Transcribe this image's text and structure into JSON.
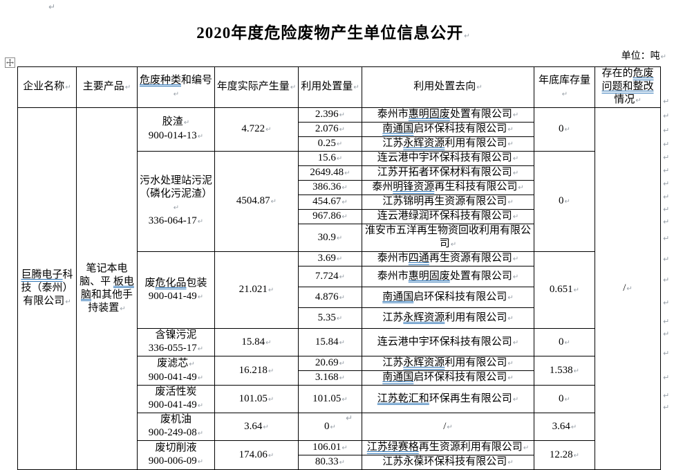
{
  "document": {
    "paragraph_mark": "↵",
    "title": "2020年度危险废物产生单位信息公开",
    "unit_label": "单位：吨"
  },
  "colors": {
    "grammar_underline": "#2e75b6",
    "formatting_mark": "#98a0a8",
    "table_border": "#000000",
    "text": "#000000",
    "background": "#ffffff"
  },
  "table": {
    "headers": [
      {
        "t": "企业名称"
      },
      {
        "t": "主要产品"
      },
      {
        "t": "危废种类和编号",
        "u": "危废种类"
      },
      {
        "t": "年度实际产生量"
      },
      {
        "t": "利用处置量"
      },
      {
        "t": "利用处置去向"
      },
      {
        "t": "年底库存量"
      },
      {
        "t": "存在的危废问题和整改情况",
        "u": "危废问题和整改"
      }
    ],
    "company": {
      "t": "巨腾电子科技（泰州）有限公司",
      "u": "巨腾电子"
    },
    "main_product": {
      "t": "笔记本电脑、平 板电脑和其他手持装置",
      "u": "板电脑"
    },
    "issues": "/",
    "groups": [
      {
        "waste_lines": [
          {
            "t": "胶渣",
            "p": true
          },
          {
            "t": "900-014-13",
            "p": true
          }
        ],
        "annual": "4.722",
        "stock": "0",
        "rows": [
          {
            "amount": "2.396",
            "dest": {
              "t": "泰州市惠明固废处置有限公司",
              "u": "惠明固废"
            }
          },
          {
            "amount": "2.076",
            "dest": {
              "t": "南通国启环保科技有限公司",
              "u": "南通国"
            }
          },
          {
            "amount": "0.25",
            "dest": {
              "t": "江苏永辉资源利用有限公司",
              "u": "永辉资源"
            }
          }
        ]
      },
      {
        "waste_lines": [
          {
            "t": "污水处理站污泥",
            "p": false
          },
          {
            "t": "（磷化污泥渣）",
            "p": true
          },
          {
            "t": "336-064-17",
            "p": true
          }
        ],
        "annual": "4504.87",
        "stock": "0",
        "rows": [
          {
            "amount": "15.6",
            "dest": {
              "t": "连云港中宇环保科技有限公司"
            }
          },
          {
            "amount": "2649.48",
            "dest": {
              "t": "江苏开拓者环保材料有限公司"
            }
          },
          {
            "amount": "386.36",
            "dest": {
              "t": "泰州明锋资源再生科技有限公司",
              "u": "明锋资源"
            }
          },
          {
            "amount": "454.67",
            "dest": {
              "t": "江苏锦明再生资源有限公司"
            }
          },
          {
            "amount": "967.86",
            "dest": {
              "t": "连云港绿润环保科技有限公司"
            }
          },
          {
            "amount": "30.9",
            "dest": {
              "t": "淮安市五洋再生物资回收利用有限公司"
            }
          }
        ]
      },
      {
        "waste_lines": [
          {
            "t": "废危化品包装",
            "u": "危化品",
            "p": false
          },
          {
            "t": "900-041-49",
            "p": true
          }
        ],
        "annual": "21.021",
        "stock": "0.651",
        "rows": [
          {
            "amount": "3.69",
            "dest": {
              "t": "泰州市四通再生资源有限公司",
              "u": "四通"
            }
          },
          {
            "amount": "7.724",
            "dest": {
              "t": "泰州市惠明固废处置有限公司",
              "u": "惠明固废"
            }
          },
          {
            "amount": "4.876",
            "dest": {
              "t": "南通国启环保科技有限公司",
              "u": "南通国"
            }
          },
          {
            "amount": "5.35",
            "dest": {
              "t": "江苏永辉资源利用有限公司",
              "u": "永辉资源"
            }
          }
        ]
      },
      {
        "waste_lines": [
          {
            "t": "含镍污泥",
            "p": false
          },
          {
            "t": "336-055-17",
            "p": true
          }
        ],
        "annual": "15.84",
        "stock": "0",
        "rows": [
          {
            "amount": "15.84",
            "dest": {
              "t": "连云港中宇环保科技有限公司"
            }
          }
        ]
      },
      {
        "waste_lines": [
          {
            "t": "废滤芯",
            "p": true
          },
          {
            "t": "900-041-49",
            "p": true
          }
        ],
        "annual": "16.218",
        "stock": "1.538",
        "rows": [
          {
            "amount": "20.69",
            "dest": {
              "t": "江苏永辉资源利用有限公司",
              "u": "永辉资源"
            }
          },
          {
            "amount": "3.168",
            "dest": {
              "t": "南通国启环保科技有限公司",
              "u": "南通国"
            }
          }
        ]
      },
      {
        "waste_lines": [
          {
            "t": "废活性炭",
            "p": false
          },
          {
            "t": "900-041-49",
            "p": true
          }
        ],
        "annual": "101.05",
        "stock": "0",
        "rows": [
          {
            "amount": "101.05",
            "dest": {
              "t": "江苏乾汇和环保再生有限公司",
              "u": "江苏乾汇和"
            }
          }
        ]
      },
      {
        "waste_lines": [
          {
            "t": "废机油",
            "p": false
          },
          {
            "t": "900-249-08",
            "p": true
          }
        ],
        "annual": "3.64",
        "stock": "3.64",
        "rows": [
          {
            "amount": "0",
            "dest": {
              "t": "/"
            }
          }
        ]
      },
      {
        "waste_lines": [
          {
            "t": "废切削液",
            "p": false
          },
          {
            "t": "900-006-09",
            "p": true
          }
        ],
        "annual": "174.06",
        "stock": "12.28",
        "rows": [
          {
            "amount": "106.01",
            "dest": {
              "t": "江苏绿赛格再生资源利用有限公司",
              "u": "江苏绿赛格"
            }
          },
          {
            "amount": "80.33",
            "dest": {
              "t": "江苏永葆环保科技有限公司"
            }
          }
        ]
      }
    ]
  }
}
